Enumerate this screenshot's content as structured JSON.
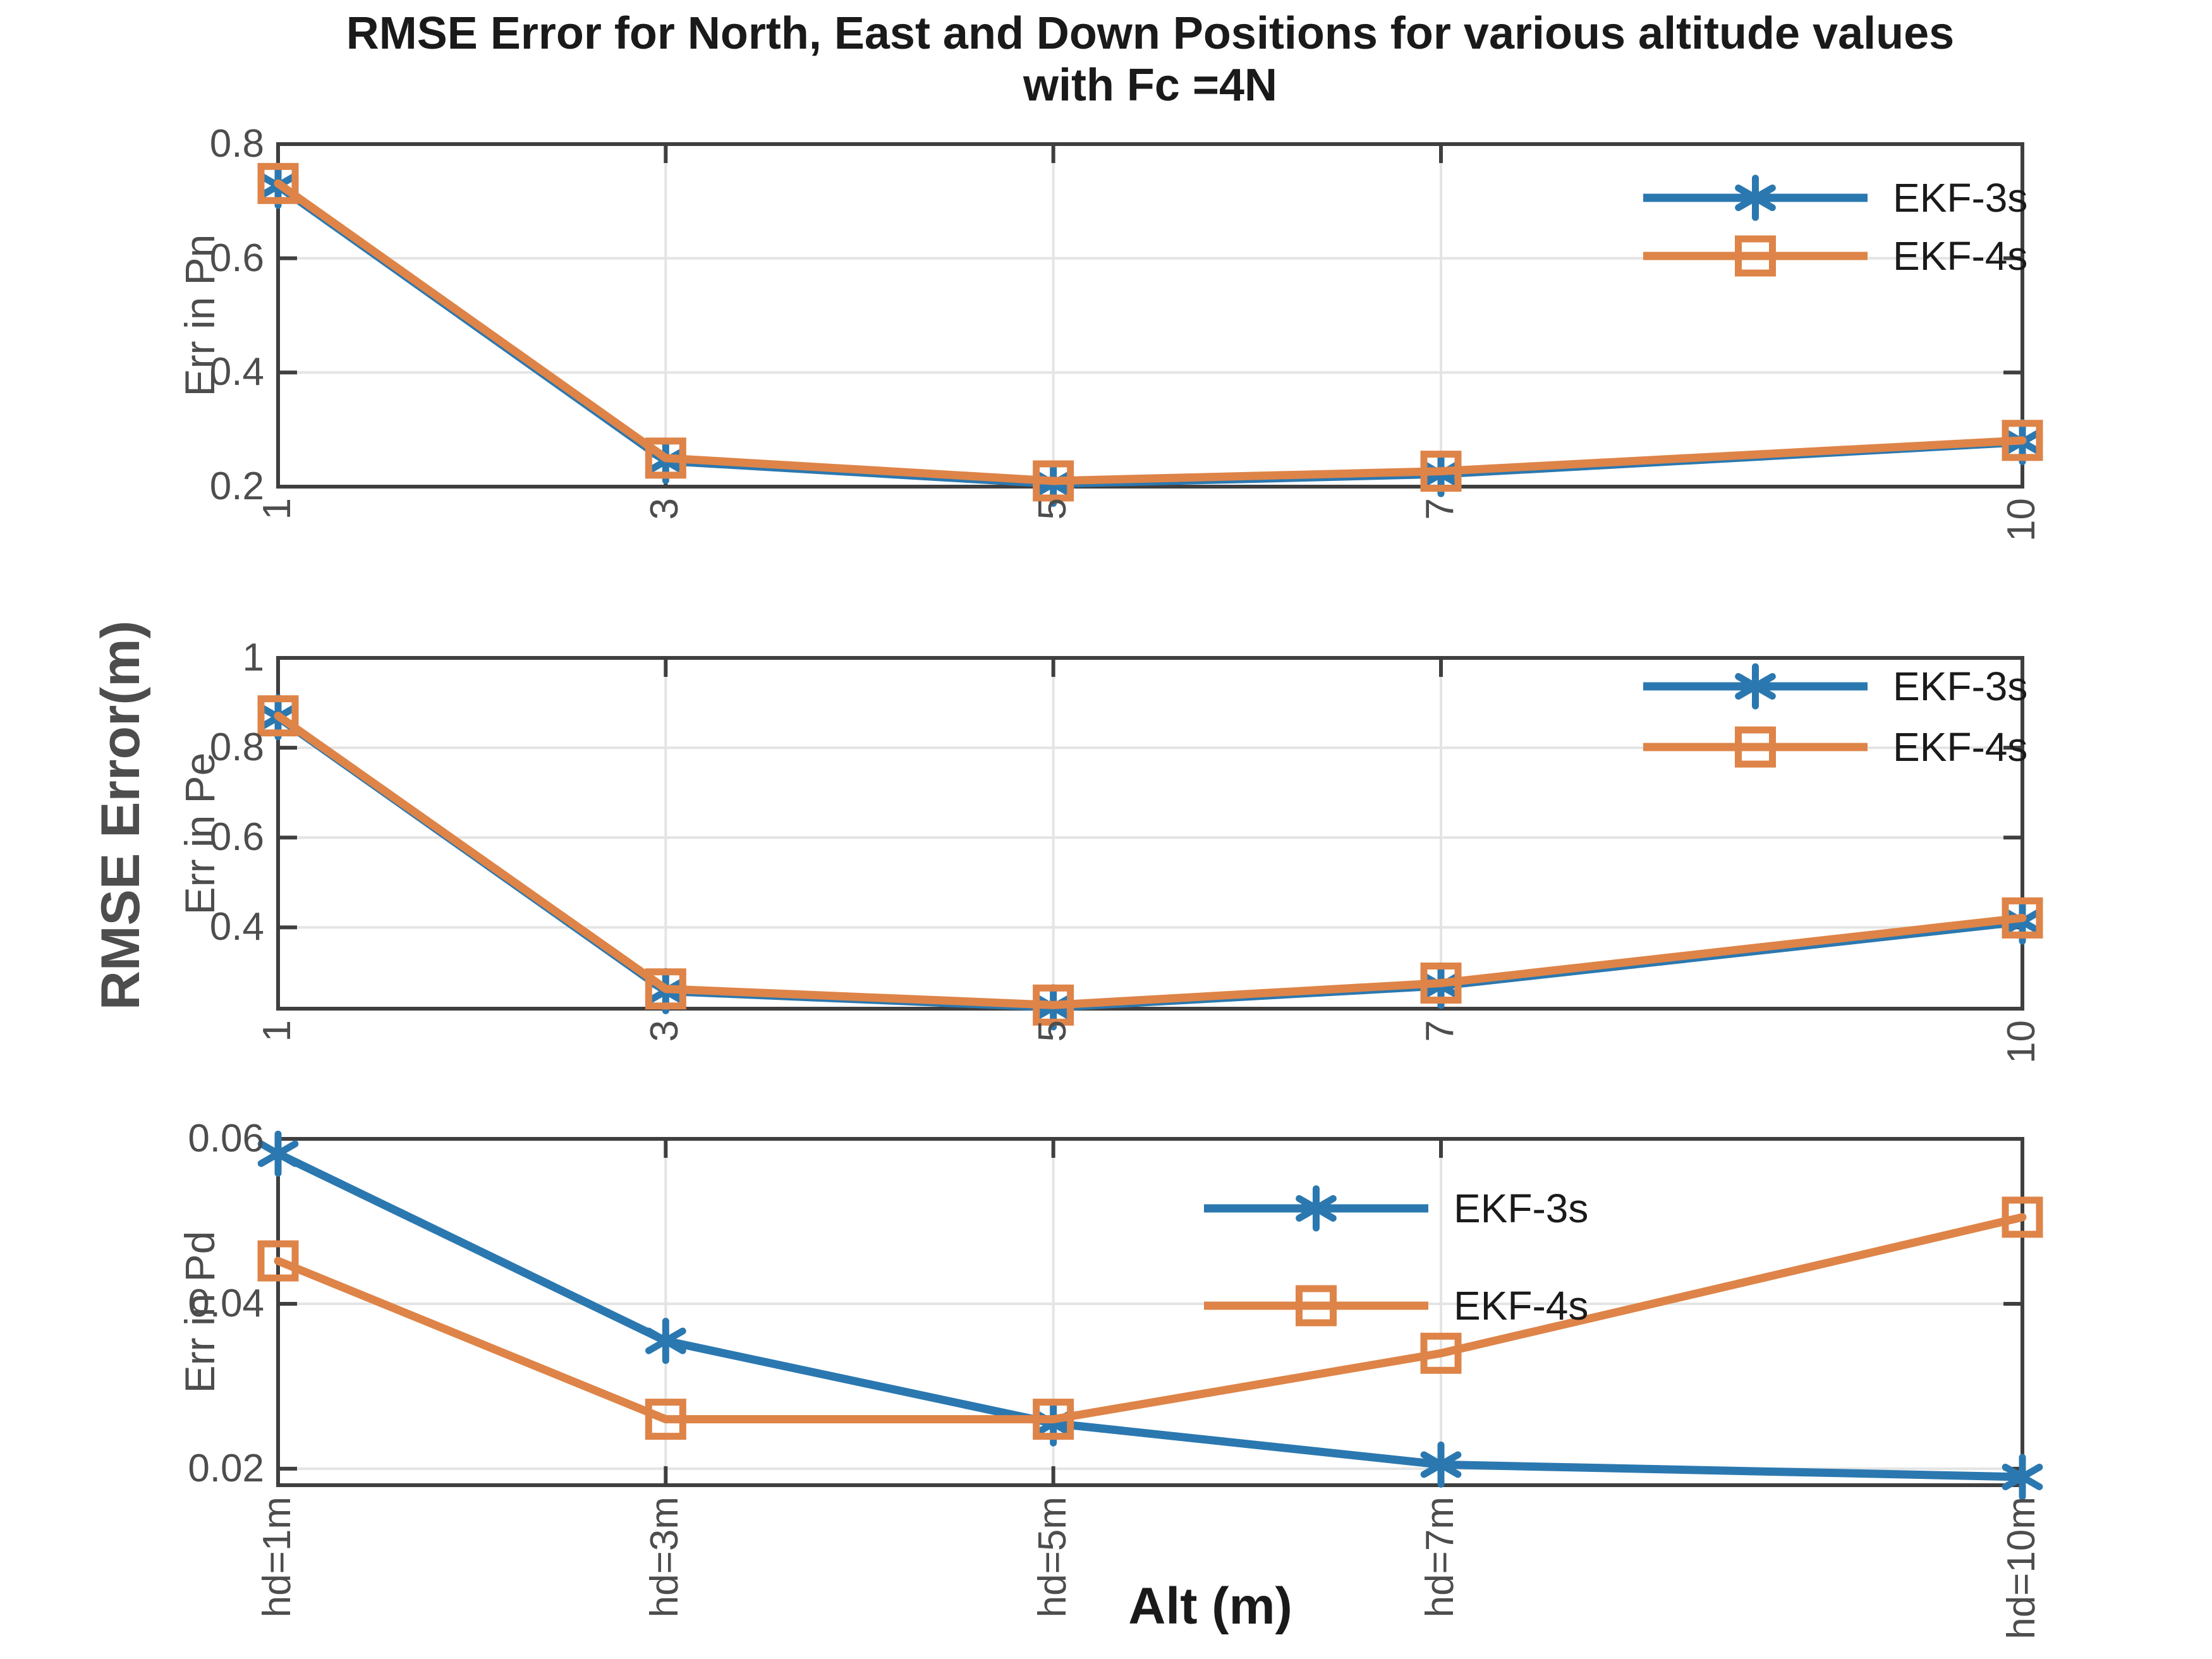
{
  "title": {
    "line1": "RMSE Error for North, East and Down Positions for various altitude values",
    "line2": "with Fc =4N"
  },
  "shared_ylabel": "RMSE Error(m)",
  "xlabel": "Alt (m)",
  "colors": {
    "series_blue": "#2B78B0",
    "series_orange": "#DE8448",
    "axis": "#3F3F3F",
    "grid": "#E4E4E4",
    "tick_text": "#4D4D4D",
    "label_text": "#1A1A1A"
  },
  "chart_data": [
    {
      "type": "line",
      "ylabel": "Err in Pn",
      "x": [
        1,
        3,
        5,
        7,
        10
      ],
      "xlim": [
        1,
        10
      ],
      "ylim": [
        0.2,
        0.8
      ],
      "yticks": [
        0.2,
        0.4,
        0.6,
        0.8
      ],
      "ytick_labels": [
        "0.2",
        "0.4",
        "0.6",
        "0.8"
      ],
      "xtick_labels": [
        "1",
        "3",
        "5",
        "7",
        "10"
      ],
      "grid": true,
      "legend_position": "upper-right",
      "series": [
        {
          "name": "EKF-3s",
          "color_key": "series_blue",
          "marker": "asterisk",
          "values": [
            0.727,
            0.245,
            0.205,
            0.222,
            0.278
          ]
        },
        {
          "name": "EKF-4s",
          "color_key": "series_orange",
          "marker": "square",
          "values": [
            0.731,
            0.25,
            0.21,
            0.227,
            0.281
          ]
        }
      ]
    },
    {
      "type": "line",
      "ylabel": "Err in Pe",
      "x": [
        1,
        3,
        5,
        7,
        10
      ],
      "xlim": [
        1,
        10
      ],
      "ylim": [
        0.219,
        1.0
      ],
      "yticks": [
        0.4,
        0.6,
        0.8,
        1.0
      ],
      "ytick_labels": [
        "0.4",
        "0.6",
        "0.8",
        "1"
      ],
      "xtick_labels": [
        "1",
        "3",
        "5",
        "7",
        "10"
      ],
      "grid": true,
      "legend_position": "upper-right",
      "series": [
        {
          "name": "EKF-3s",
          "color_key": "series_blue",
          "marker": "asterisk",
          "values": [
            0.868,
            0.258,
            0.222,
            0.27,
            0.413
          ]
        },
        {
          "name": "EKF-4s",
          "color_key": "series_orange",
          "marker": "square",
          "values": [
            0.871,
            0.263,
            0.227,
            0.276,
            0.421
          ]
        }
      ]
    },
    {
      "type": "line",
      "ylabel": "Err in Pd",
      "x": [
        1,
        3,
        5,
        7,
        10
      ],
      "xlim": [
        1,
        10
      ],
      "ylim": [
        0.018,
        0.06
      ],
      "yticks": [
        0.02,
        0.04,
        0.06
      ],
      "ytick_labels": [
        "0.02",
        "0.04",
        "0.06"
      ],
      "xtick_labels": [
        "hd=1m",
        "hd=3m",
        "hd=5m",
        "hd=7m",
        "hd=10m"
      ],
      "grid": true,
      "legend_position": "upper-center",
      "series": [
        {
          "name": "EKF-3s",
          "color_key": "series_blue",
          "marker": "asterisk",
          "values": [
            0.0582,
            0.0355,
            0.0255,
            0.0205,
            0.019
          ]
        },
        {
          "name": "EKF-4s",
          "color_key": "series_orange",
          "marker": "square",
          "values": [
            0.0452,
            0.026,
            0.026,
            0.034,
            0.0505
          ]
        }
      ]
    }
  ]
}
